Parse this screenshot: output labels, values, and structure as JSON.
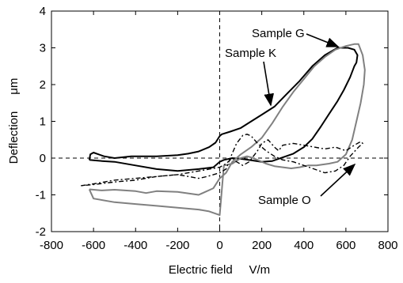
{
  "chart_data": {
    "type": "line",
    "xlabel": "Electric field     V/m",
    "ylabel": "Deflection     μm",
    "xlim": [
      -800,
      800
    ],
    "ylim": [
      -2,
      4
    ],
    "xticks": [
      -800,
      -600,
      -400,
      -200,
      0,
      200,
      400,
      600,
      800
    ],
    "yticks": [
      -2,
      -1,
      0,
      1,
      2,
      3,
      4
    ],
    "grid": false,
    "dashed_zero_lines": true,
    "annotations": [
      {
        "text": "Sample G",
        "series": 1
      },
      {
        "text": "Sample K",
        "series": 0
      },
      {
        "text": "Sample O",
        "series": 2
      }
    ],
    "series": [
      {
        "name": "Sample K",
        "color": "#000000",
        "style": "solid",
        "x": [
          -620,
          -615,
          -600,
          -550,
          -500,
          -420,
          -300,
          -200,
          -150,
          -100,
          -50,
          -20,
          0,
          10,
          50,
          100,
          150,
          200,
          260,
          320,
          380,
          440,
          500,
          560,
          610,
          640,
          655,
          650,
          640,
          620,
          590,
          560,
          520,
          480,
          440,
          400,
          350,
          300,
          250,
          200,
          150,
          100,
          60,
          20,
          0,
          -30,
          -100,
          -200,
          -300,
          -400,
          -500,
          -560,
          -600,
          -620
        ],
        "y": [
          -0.05,
          0.1,
          0.15,
          0.05,
          0.0,
          0.05,
          0.05,
          0.08,
          0.12,
          0.18,
          0.3,
          0.42,
          0.6,
          0.65,
          0.72,
          0.82,
          1.0,
          1.18,
          1.4,
          1.75,
          2.1,
          2.5,
          2.8,
          3.0,
          3.0,
          2.95,
          2.8,
          2.6,
          2.5,
          2.2,
          1.85,
          1.55,
          1.2,
          0.85,
          0.52,
          0.3,
          0.12,
          0.02,
          -0.08,
          -0.1,
          -0.06,
          -0.02,
          0.0,
          -0.05,
          -0.1,
          -0.25,
          -0.3,
          -0.35,
          -0.3,
          -0.2,
          -0.1,
          -0.08,
          -0.06,
          -0.05
        ]
      },
      {
        "name": "Sample G",
        "color": "#808080",
        "style": "solid",
        "x": [
          -620,
          -560,
          -500,
          -400,
          -350,
          -300,
          -200,
          -100,
          -30,
          0,
          30,
          60,
          100,
          150,
          200,
          250,
          300,
          350,
          400,
          450,
          500,
          550,
          600,
          640,
          660,
          680,
          690,
          685,
          670,
          650,
          630,
          600,
          560,
          520,
          460,
          420,
          380,
          340,
          300,
          260,
          220,
          180,
          150,
          130,
          100,
          60,
          20,
          0,
          -50,
          -100,
          -200,
          -300,
          -400,
          -500,
          -600,
          -620
        ],
        "y": [
          -0.85,
          -0.88,
          -0.86,
          -0.9,
          -0.95,
          -0.9,
          -0.92,
          -1.0,
          -0.82,
          -0.55,
          -0.4,
          -0.1,
          0.1,
          0.3,
          0.55,
          0.95,
          1.4,
          1.8,
          2.15,
          2.5,
          2.75,
          2.95,
          3.05,
          3.1,
          3.1,
          2.8,
          2.4,
          2.0,
          1.5,
          1.0,
          0.5,
          0.1,
          -0.1,
          -0.15,
          -0.2,
          -0.2,
          -0.25,
          -0.28,
          -0.25,
          -0.22,
          -0.15,
          -0.05,
          0.02,
          0.05,
          0.0,
          -0.15,
          -0.2,
          -1.55,
          -1.45,
          -1.4,
          -1.35,
          -1.3,
          -1.25,
          -1.2,
          -1.1,
          -0.85
        ]
      },
      {
        "name": "Sample O",
        "color": "#000000",
        "style": "dashed",
        "x": [
          -660,
          -600,
          -500,
          -400,
          -300,
          -200,
          -100,
          -60,
          0,
          30,
          50,
          80,
          110,
          130,
          150,
          180,
          220,
          260,
          300,
          350,
          400,
          450,
          500,
          550,
          590,
          620,
          660,
          680,
          670,
          640,
          600,
          550,
          500,
          450,
          400,
          350,
          300,
          280,
          260,
          230,
          200,
          180,
          160,
          140,
          110,
          80,
          60,
          30,
          0,
          -100,
          -200,
          -300,
          -400,
          -500,
          -600,
          -660
        ],
        "y": [
          -0.75,
          -0.7,
          -0.6,
          -0.55,
          -0.5,
          -0.45,
          -0.55,
          -0.5,
          -0.4,
          -0.3,
          0.0,
          0.4,
          0.62,
          0.65,
          0.6,
          0.4,
          0.2,
          0.05,
          -0.05,
          -0.1,
          -0.2,
          -0.3,
          -0.4,
          -0.35,
          -0.2,
          0.05,
          0.3,
          0.4,
          0.45,
          0.35,
          0.2,
          0.3,
          0.25,
          0.3,
          0.35,
          0.4,
          0.35,
          0.2,
          0.3,
          0.5,
          0.4,
          0.2,
          0.05,
          -0.1,
          -0.2,
          -0.1,
          0.0,
          -0.15,
          -0.25,
          -0.35,
          -0.45,
          -0.5,
          -0.6,
          -0.65,
          -0.72,
          -0.75
        ]
      }
    ]
  }
}
